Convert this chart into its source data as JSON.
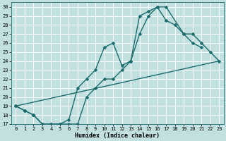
{
  "xlabel": "Humidex (Indice chaleur)",
  "xlim": [
    -0.5,
    23.5
  ],
  "ylim": [
    17,
    30.5
  ],
  "xticks": [
    0,
    1,
    2,
    3,
    4,
    5,
    6,
    7,
    8,
    9,
    10,
    11,
    12,
    13,
    14,
    15,
    16,
    17,
    18,
    19,
    20,
    21,
    22,
    23
  ],
  "yticks": [
    17,
    18,
    19,
    20,
    21,
    22,
    23,
    24,
    25,
    26,
    27,
    28,
    29,
    30
  ],
  "bg_color": "#c2e0e0",
  "line_color": "#1a6b6b",
  "grid_color": "#ffffff",
  "line1_x": [
    0,
    1,
    2,
    3,
    4,
    5,
    6,
    7,
    8,
    9,
    10,
    11,
    12,
    13,
    14,
    15,
    16,
    17,
    19,
    20,
    21
  ],
  "line1_y": [
    19,
    18.5,
    18,
    17,
    17,
    17,
    17.5,
    21,
    22,
    23,
    25.5,
    26,
    23.5,
    24,
    29,
    29.5,
    30,
    30,
    27,
    26,
    25.5
  ],
  "line2_x": [
    0,
    1,
    2,
    3,
    4,
    5,
    6,
    7,
    8,
    9,
    10,
    11,
    12,
    13,
    14,
    15,
    16,
    17,
    18,
    19,
    20,
    21,
    22,
    23
  ],
  "line2_y": [
    19,
    18.5,
    18,
    17,
    17,
    17,
    17,
    17,
    20,
    21,
    22,
    22,
    23,
    24,
    27,
    29,
    30,
    28.5,
    28,
    27,
    27,
    26,
    25,
    24
  ],
  "line3_x": [
    0,
    23
  ],
  "line3_y": [
    19,
    24
  ],
  "marker_size": 2.5,
  "linewidth": 1.0,
  "axis_fontsize": 6,
  "tick_fontsize": 5
}
